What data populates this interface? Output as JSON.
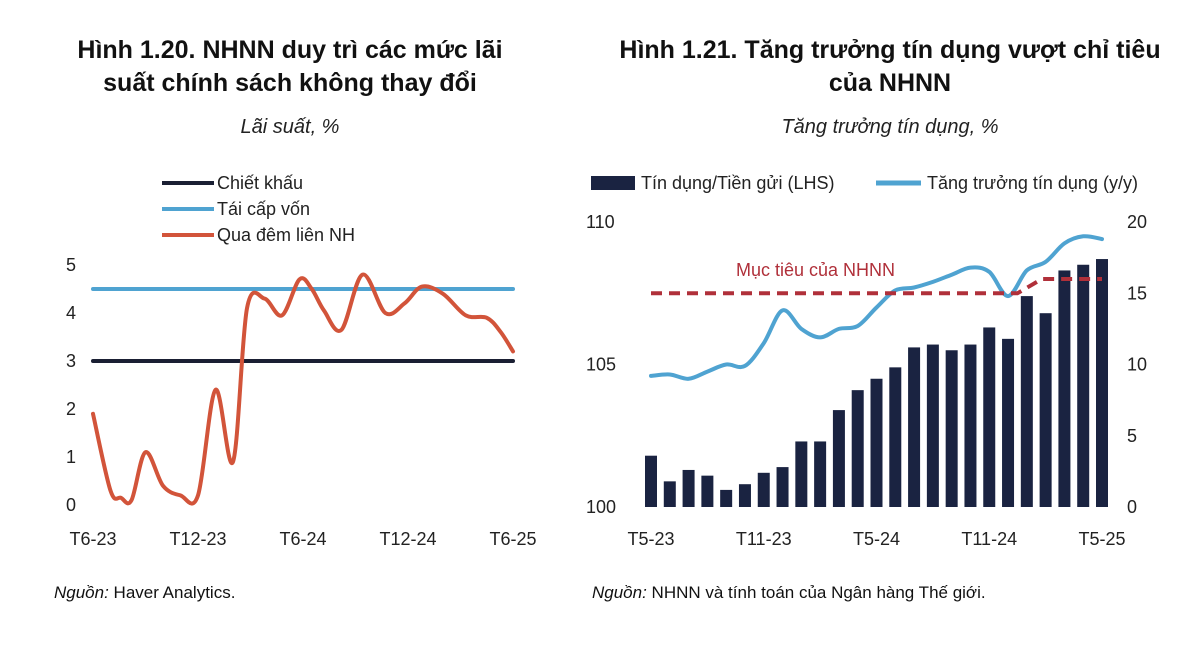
{
  "charts_page": {
    "left": {
      "title_line1": "Hình 1.20. NHNN duy trì các mức lãi",
      "title_line2": "suất chính sách không thay đổi",
      "subtitle": "Lãi suất, %",
      "source_label": "Nguồn:",
      "source_text": " Haver Analytics."
    },
    "right": {
      "title_line1": "Hình 1.21. Tăng trưởng tín dụng vượt chỉ tiêu",
      "title_line2": "của NHNN",
      "subtitle": "Tăng trưởng tín dụng, %",
      "source_label": "Nguồn:",
      "source_text": " NHNN và tính toán của Ngân hàng Thế giới."
    }
  },
  "chart_data": [
    {
      "type": "line",
      "title": "Hình 1.20. NHNN duy trì các mức lãi suất chính sách không thay đổi",
      "ylabel": "Lãi suất, %",
      "ylim": [
        0,
        5
      ],
      "yticks": [
        0,
        1,
        2,
        3,
        4,
        5
      ],
      "x_range": [
        0,
        24
      ],
      "x_tick_labels": [
        {
          "pos": 0,
          "label": "T6-23"
        },
        {
          "pos": 6,
          "label": "T12-23"
        },
        {
          "pos": 12,
          "label": "T6-24"
        },
        {
          "pos": 18,
          "label": "T12-24"
        },
        {
          "pos": 24,
          "label": "T6-25"
        }
      ],
      "legend_position": "top-left",
      "grid": false,
      "series": [
        {
          "name": "Chiết khấu",
          "color": "#1a1f33",
          "x": [
            0,
            24
          ],
          "values": [
            3.0,
            3.0
          ]
        },
        {
          "name": "Tái cấp vốn",
          "color": "#4fa3d1",
          "x": [
            0,
            24
          ],
          "values": [
            4.5,
            4.5
          ]
        },
        {
          "name": "Qua đêm liên NH",
          "color": "#d2543a",
          "x": [
            0,
            1,
            1.6,
            2.2,
            3,
            4,
            5,
            6,
            7,
            8,
            8.8,
            9.8,
            10.8,
            11.8,
            12.5,
            13.2,
            14.2,
            15.4,
            16.7,
            17.8,
            18.8,
            20,
            21.3,
            22.5,
            23.3,
            24
          ],
          "values": [
            1.9,
            0.3,
            0.15,
            0.1,
            1.1,
            0.4,
            0.2,
            0.2,
            2.4,
            0.9,
            4.1,
            4.3,
            3.95,
            4.7,
            4.5,
            4.05,
            3.65,
            4.8,
            4.0,
            4.2,
            4.55,
            4.4,
            3.95,
            3.9,
            3.6,
            3.2
          ]
        }
      ],
      "annotations": []
    },
    {
      "type": "bar",
      "title": "Hình 1.21. Tăng trưởng tín dụng vượt chỉ tiêu của NHNN",
      "subtitle": "Tăng trưởng tín dụng, %",
      "ylim_left": [
        100,
        110
      ],
      "yticks_left": [
        100,
        105,
        110
      ],
      "ylim_right": [
        0,
        20
      ],
      "yticks_right": [
        0,
        5,
        10,
        15,
        20
      ],
      "x_tick_labels": [
        {
          "pos": 0,
          "label": "T5-23"
        },
        {
          "pos": 6,
          "label": "T11-23"
        },
        {
          "pos": 12,
          "label": "T5-24"
        },
        {
          "pos": 18,
          "label": "T11-24"
        },
        {
          "pos": 24,
          "label": "T5-25"
        }
      ],
      "legend_position": "top",
      "grid": false,
      "series": [
        {
          "name": "Tín dụng/Tiền gửi (LHS)",
          "type": "bar",
          "axis": "left",
          "color": "#1a2341",
          "values": [
            101.8,
            100.9,
            101.3,
            101.1,
            100.6,
            100.8,
            101.2,
            101.4,
            102.3,
            102.3,
            103.4,
            104.1,
            104.5,
            104.9,
            105.6,
            105.7,
            105.5,
            105.7,
            106.3,
            105.9,
            107.4,
            106.8,
            108.3,
            108.5,
            108.7
          ]
        },
        {
          "name": "Tăng trưởng tín dụng (y/y)",
          "type": "line",
          "axis": "right",
          "color": "#4fa3d1",
          "values": [
            9.2,
            9.3,
            9.0,
            9.5,
            10.0,
            9.9,
            11.5,
            13.8,
            12.5,
            11.9,
            12.5,
            12.7,
            14.0,
            15.2,
            15.4,
            15.8,
            16.3,
            16.8,
            16.5,
            14.8,
            16.6,
            17.2,
            18.5,
            19.0,
            18.8
          ]
        },
        {
          "name": "Mục tiêu của NHNN",
          "type": "line",
          "axis": "right",
          "color": "#b0303a",
          "dashed": true,
          "x": [
            0,
            19.5,
            20.8,
            24
          ],
          "values": [
            15.0,
            15.0,
            16.0,
            16.0
          ]
        }
      ],
      "annotations": [
        {
          "text": "Mục tiêu của NHNN",
          "color": "#b0303a"
        }
      ]
    }
  ]
}
